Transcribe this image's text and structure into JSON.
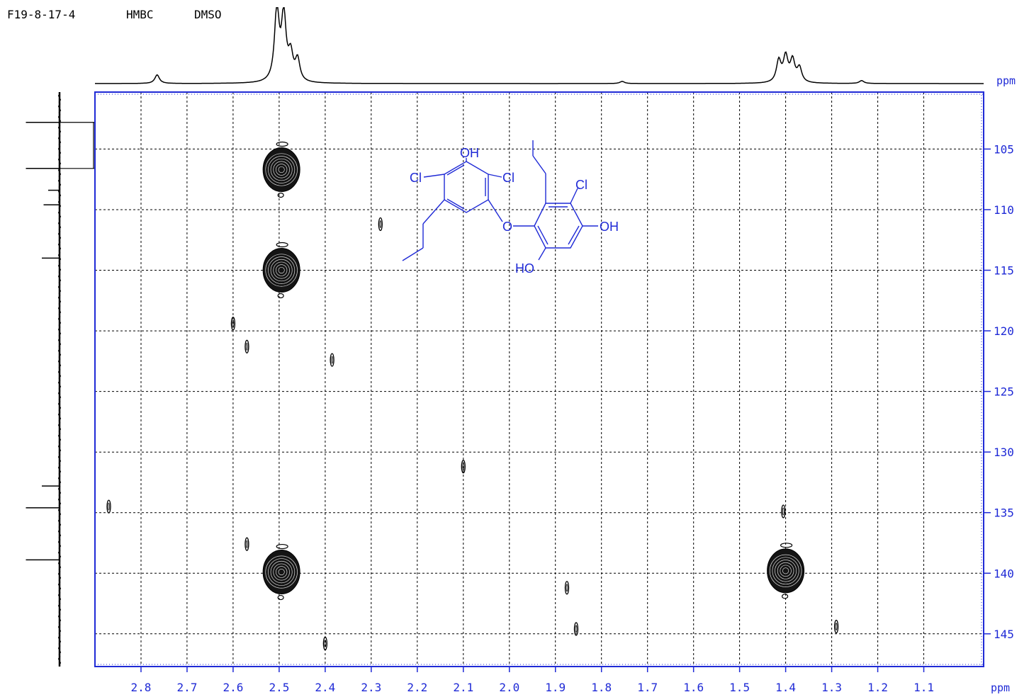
{
  "header": {
    "sample": "F19-8-17-4",
    "experiment": "HMBC",
    "solvent": "DMSO"
  },
  "colors": {
    "frame": "#1f2ad6",
    "grid": "#000000",
    "contour": "#000000",
    "structure": "#1f2ad6"
  },
  "chart_data": {
    "type": "heatmap",
    "subtype": "2D HMBC NMR contour plot",
    "x_axis": {
      "label": "ppm",
      "reversed": true,
      "range": [
        2.9,
        0.97
      ],
      "ticks": [
        2.8,
        2.7,
        2.6,
        2.5,
        2.4,
        2.3,
        2.2,
        2.1,
        2.0,
        1.9,
        1.8,
        1.7,
        1.6,
        1.5,
        1.4,
        1.3,
        1.2,
        1.1
      ],
      "tick_labels": [
        "2.8",
        "2.7",
        "2.6",
        "2.5",
        "2.4",
        "2.3",
        "2.2",
        "2.1",
        "2.0",
        "1.9",
        "1.8",
        "1.7",
        "1.6",
        "1.5",
        "1.4",
        "1.3",
        "1.2",
        "1.1"
      ]
    },
    "y_axis": {
      "label": "ppm",
      "reversed": true,
      "range": [
        100.3,
        147.7
      ],
      "ticks": [
        105,
        110,
        115,
        120,
        125,
        130,
        135,
        140,
        145
      ],
      "tick_labels": [
        "105",
        "110",
        "115",
        "120",
        "125",
        "130",
        "135",
        "140",
        "145"
      ]
    },
    "grid": true,
    "cross_peaks": [
      {
        "h": 2.495,
        "c": 106.7,
        "size": "large"
      },
      {
        "h": 2.495,
        "c": 115.0,
        "size": "large"
      },
      {
        "h": 2.495,
        "c": 139.9,
        "size": "large"
      },
      {
        "h": 1.4,
        "c": 139.8,
        "size": "large"
      },
      {
        "h": 1.405,
        "c": 134.9,
        "size": "small"
      },
      {
        "h": 2.57,
        "c": 121.3,
        "size": "small"
      },
      {
        "h": 2.385,
        "c": 122.4,
        "size": "small"
      },
      {
        "h": 2.28,
        "c": 111.2,
        "size": "small"
      },
      {
        "h": 2.57,
        "c": 137.6,
        "size": "small"
      },
      {
        "h": 1.855,
        "c": 144.6,
        "size": "small"
      },
      {
        "h": 2.4,
        "c": 145.8,
        "size": "small"
      },
      {
        "h": 1.29,
        "c": 144.4,
        "size": "small"
      },
      {
        "h": 2.1,
        "c": 131.2,
        "size": "small"
      },
      {
        "h": 1.875,
        "c": 141.2,
        "size": "small"
      },
      {
        "h": 2.87,
        "c": 134.5,
        "size": "small"
      },
      {
        "h": 2.6,
        "c": 119.4,
        "size": "small"
      }
    ],
    "f2_projection_peaks": [
      {
        "ppm": 2.765,
        "height": 0.12
      },
      {
        "ppm": 2.505,
        "height": 1.0
      },
      {
        "ppm": 2.49,
        "height": 0.9
      },
      {
        "ppm": 2.475,
        "height": 0.35
      },
      {
        "ppm": 2.46,
        "height": 0.3
      },
      {
        "ppm": 1.755,
        "height": 0.03
      },
      {
        "ppm": 1.415,
        "height": 0.3
      },
      {
        "ppm": 1.4,
        "height": 0.35
      },
      {
        "ppm": 1.385,
        "height": 0.3
      },
      {
        "ppm": 1.37,
        "height": 0.2
      },
      {
        "ppm": 1.235,
        "height": 0.04
      }
    ],
    "f1_projection_peaks": [
      {
        "ppm": 102.8,
        "height": 0.95
      },
      {
        "ppm": 106.6,
        "height": 0.95
      },
      {
        "ppm": 108.4,
        "height": 0.32
      },
      {
        "ppm": 109.6,
        "height": 0.45
      },
      {
        "ppm": 114.0,
        "height": 0.5
      },
      {
        "ppm": 132.8,
        "height": 0.5
      },
      {
        "ppm": 134.6,
        "height": 0.95
      },
      {
        "ppm": 138.9,
        "height": 0.95
      }
    ]
  },
  "structure_labels": {
    "oh_top": "OH",
    "cl_left": "Cl",
    "cl_right": "Cl",
    "cl_ring2": "Cl",
    "o_bridge": "O",
    "oh_right": "OH",
    "ho_bottom": "HO"
  }
}
